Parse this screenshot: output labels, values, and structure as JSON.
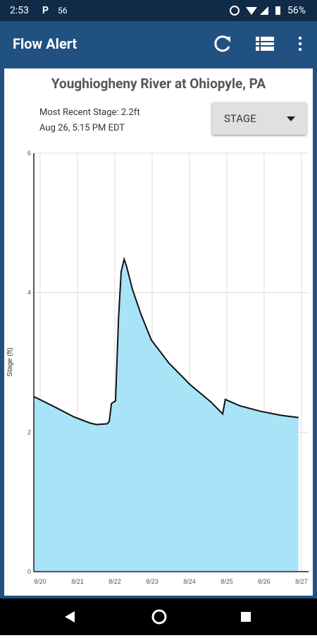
{
  "status_bar": {
    "time": "2:53",
    "app_icon": "P",
    "notification": "56",
    "battery": "56%"
  },
  "app_bar": {
    "title": "Flow Alert"
  },
  "card": {
    "title": "Youghiogheny River at Ohiopyle, PA",
    "recent_stage": "Most Recent Stage: 2.2ft",
    "recent_time": "Aug 26, 5:15 PM EDT",
    "dropdown": "STAGE"
  },
  "chart_data": {
    "type": "area",
    "y_label": "Stage (ft)",
    "color": "#a8e3f8",
    "line_color": "#111111",
    "grid": true,
    "x": [
      -0.17,
      0.43,
      0.9,
      1.34,
      1.51,
      1.79,
      1.85,
      1.91,
      2.02,
      2.1,
      2.17,
      2.25,
      2.32,
      2.47,
      2.7,
      2.98,
      3.45,
      4.02,
      4.58,
      4.89,
      4.96,
      5.34,
      5.9,
      6.47,
      6.92
    ],
    "values": [
      2.51,
      2.35,
      2.22,
      2.13,
      2.11,
      2.12,
      2.15,
      2.41,
      2.45,
      3.64,
      4.3,
      4.48,
      4.37,
      4.05,
      3.69,
      3.32,
      2.99,
      2.68,
      2.43,
      2.26,
      2.47,
      2.38,
      2.3,
      2.24,
      2.21
    ],
    "xlim": [
      -0.17,
      7.19
    ],
    "ylim": [
      0,
      6
    ],
    "yticks": [
      0,
      2,
      4,
      6
    ],
    "xticks": [
      {
        "value": 0,
        "label": "8/20"
      },
      {
        "value": 1,
        "label": "8/21"
      },
      {
        "value": 2,
        "label": "8/22"
      },
      {
        "value": 3,
        "label": "8/23"
      },
      {
        "value": 4,
        "label": "8/24"
      },
      {
        "value": 5,
        "label": "8/25"
      },
      {
        "value": 6,
        "label": "8/26"
      },
      {
        "value": 7,
        "label": "8/27"
      }
    ]
  }
}
